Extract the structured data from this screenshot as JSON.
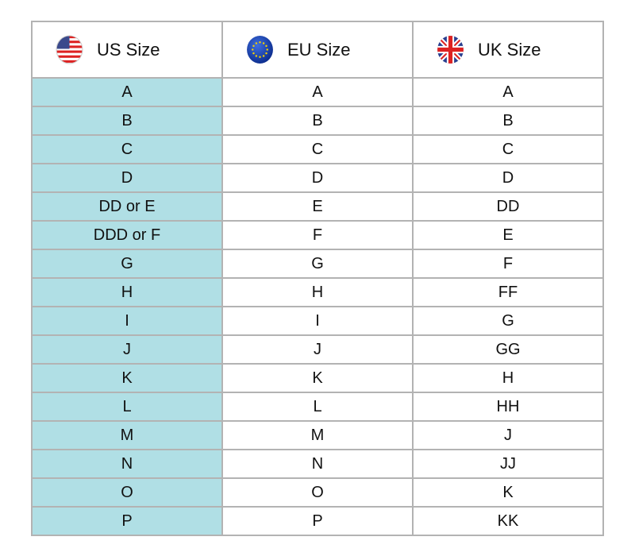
{
  "headers": [
    {
      "label": "US Size",
      "icon": "us-flag-icon"
    },
    {
      "label": "EU Size",
      "icon": "eu-flag-icon"
    },
    {
      "label": "UK Size",
      "icon": "uk-flag-icon"
    }
  ],
  "colors": {
    "us_column": "#b0dfe5",
    "border": "#b3b3b3"
  },
  "rows": [
    [
      "A",
      "A",
      "A"
    ],
    [
      "B",
      "B",
      "B"
    ],
    [
      "C",
      "C",
      "C"
    ],
    [
      "D",
      "D",
      "D"
    ],
    [
      "DD or E",
      "E",
      "DD"
    ],
    [
      "DDD or F",
      "F",
      "E"
    ],
    [
      "G",
      "G",
      "F"
    ],
    [
      "H",
      "H",
      "FF"
    ],
    [
      "I",
      "I",
      "G"
    ],
    [
      "J",
      "J",
      "GG"
    ],
    [
      "K",
      "K",
      "H"
    ],
    [
      "L",
      "L",
      "HH"
    ],
    [
      "M",
      "M",
      "J"
    ],
    [
      "N",
      "N",
      "JJ"
    ],
    [
      "O",
      "O",
      "K"
    ],
    [
      "P",
      "P",
      "KK"
    ]
  ]
}
